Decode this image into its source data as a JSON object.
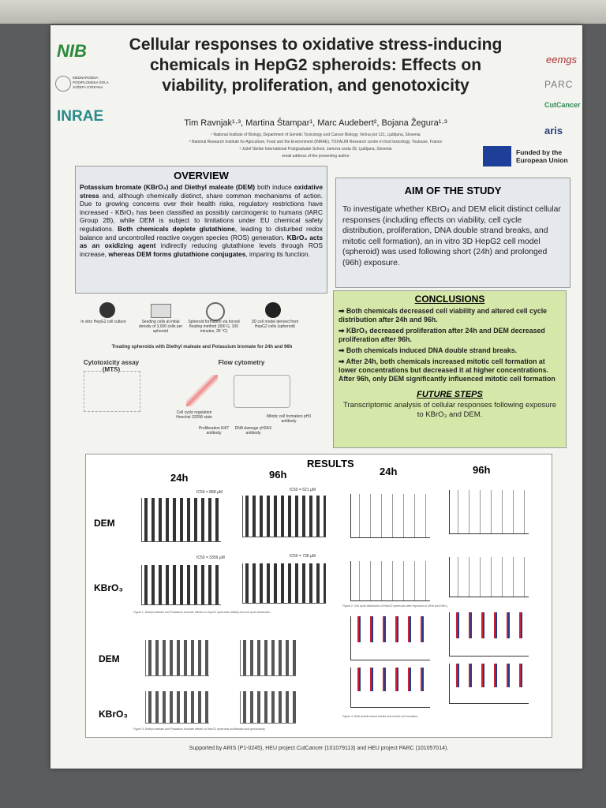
{
  "header": {
    "title": "Cellular responses to oxidative stress-inducing chemicals in HepG2 spheroids: Effects on viability, proliferation, and genotoxicity",
    "authors": "Tim Ravnjak¹·³, Martina Štampar¹, Marc Audebert², Bojana Žegura¹·³",
    "affiliations": [
      "¹ National Institute of Biology, Department of Genetic Toxicology and Cancer Biology, Večna pot 121, Ljubljana, Slovenia",
      "² National Research Institute for Agriculture, Food and the Environment (INRAE), TOXALIM Research centre in food toxicology, Toulouse, France",
      "³ Jožef Stefan International Postgraduate School, Jamova cesta 39, Ljubljana, Slovenia",
      "email address of the presenting author"
    ]
  },
  "logos": {
    "nib": "NIB",
    "school": "MEDNARODNA PODIPLOMSKA ŠOLA JOŽEFA STEFANA",
    "inrae": "INRAE",
    "eemgs": "eemgs",
    "parc": "PARC",
    "cutcancer": "CutCancer",
    "aris": "aris",
    "eu": "Funded by the European Union"
  },
  "overview": {
    "heading": "OVERVIEW",
    "segments": [
      {
        "text": "Potassium bromate (KBrO₃) and Diethyl maleate (DEM)",
        "bold": true
      },
      {
        "text": " both induce ",
        "bold": false
      },
      {
        "text": "oxidative stress",
        "bold": true
      },
      {
        "text": " and, although chemically distinct, share common mechanisms of action. Due to growing concerns over their health risks, regulatory restrictions have increased - KBrO₃ has been classified as possibly carcinogenic to humans (IARC Group 2B), while DEM is subject to limitations under EU chemical safety regulations. ",
        "bold": false
      },
      {
        "text": "Both chemicals deplete glutathione",
        "bold": true
      },
      {
        "text": ", leading to disturbed redox balance and uncontrolled reactive oxygen species (ROS) generation. ",
        "bold": false
      },
      {
        "text": "KBrO₃ acts as an oxidizing agent",
        "bold": true
      },
      {
        "text": " indirectly reducing glutathione levels through ROS increase, ",
        "bold": false
      },
      {
        "text": "whereas DEM forms glutathione conjugates",
        "bold": true
      },
      {
        "text": ", imparing its function.",
        "bold": false
      }
    ]
  },
  "aim": {
    "heading": "AIM OF THE STUDY",
    "text": "To investigate whether KBrO₃ and DEM elicit distinct cellular responses (including effects on viability, cell cycle distribution, proliferation, DNA double strand breaks, and mitotic cell formation), an in vitro 3D HepG2 cell model (spheroid) was used following short (24h) and prolonged (96h) exposure."
  },
  "diagram": {
    "labels": [
      "In vitro HepG2 cell culture",
      "Seeding cells at initial density of 3,000 cells per spheroid",
      "Spheroid formation via forced floating method (300 G, 100 minutes, 28 °C)",
      "3D cell model derived from HepG2 cells (spheroid)",
      "Treating spheroids with Diethyl maleate and Potassium bromate for 24h and 96h",
      "Cytotoxicity assay (MTS)",
      "Flow cytometry",
      "Cell cycle regulation Hoechst 33258 stain",
      "Proliferation Ki67 antibody",
      "DNA damage γH2AX antibody",
      "Mitotic cell formation pH3 antibody"
    ]
  },
  "conclusions": {
    "heading": "CONCLUSIONS",
    "items": [
      "➡ Both chemicals decreased cell viability and altered cell cycle distribution after 24h and 96h.",
      "➡ KBrO₃ decreased proliferation after 24h and DEM decreased proliferation after 96h.",
      "➡ Both chemicals induced DNA double strand breaks.",
      "➡ After 24h, both chemicals increased mitotic cell formation at lower concentrations but decreased it at higher concentrations. After 96h, only DEM significantly influenced mitotic cell formation"
    ]
  },
  "future": {
    "heading": "FUTURE STEPS",
    "text": "Transcriptomic analysis of cellular responses following exposure to KBrO₃ and DEM."
  },
  "results": {
    "heading": "RESULTS",
    "columns": [
      "24h",
      "96h"
    ],
    "rows": [
      "DEM",
      "KBrO₃"
    ],
    "ic50": [
      "IC50 = 888 µM",
      "IC50 = 621 µM",
      "IC50 = 3359 µM",
      "IC50 = 738 µM"
    ],
    "captions": [
      "Figure 1: Diethyl maleate and Potassium bromate effects on HepG2 spheroids viability and cell cycle distribution.",
      "Figure 2: Cell cycle distribution of HepG2 spheroids after exposure to DEM and KBrO₃.",
      "Figure 3: Diethyl maleate and Potassium bromate effects on HepG2 spheroids proliferation and genotoxicity.",
      "Figure 4: DNA double strand breaks and mitotic cell formation."
    ]
  },
  "footer": "Supported by ARIS (P1-0245), HEU project CutCancer (101079113) and HEU project PARC (101057014)."
}
